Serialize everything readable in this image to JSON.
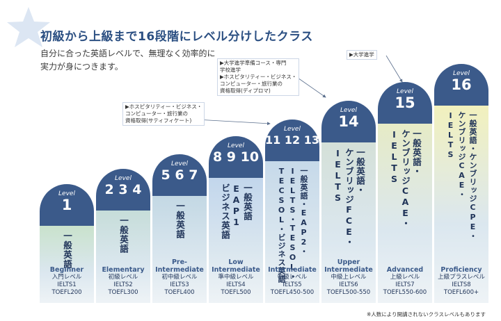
{
  "title": "初級から上級まで16段階にレベル分けしたクラス",
  "subtitle_lines": [
    "自分に合った英語レベルで、無理なく効率的に",
    "実力が身につきます。"
  ],
  "level_word": "Level",
  "notes": {
    "n1": [
      "▶ホスピタリティー・ビジネス・",
      "コンピューター・旅行業の",
      "資格取得(サティフィケート)"
    ],
    "n2": [
      "▶大学進学準備コース・専門",
      "学校進学",
      "▶ホスピタリティー・ビジネス・",
      "コンピューター・旅行業の",
      "資格取得(ディプロマ)"
    ],
    "n3": [
      "▶大学進学"
    ]
  },
  "levels": [
    {
      "num": "1",
      "course": [
        "一般英語"
      ],
      "en": "Beginner",
      "jp": "入門レベル",
      "ielts": "IELTS1",
      "toefl": "TOEFL200"
    },
    {
      "num": "2 3 4",
      "course": [
        "一般英語"
      ],
      "en": "Elementary",
      "jp": "初級レベル",
      "ielts": "IELTS2",
      "toefl": "TOEFL300"
    },
    {
      "num": "5 6 7",
      "course": [
        "一般英語"
      ],
      "en": "Pre-Intermediate",
      "en_lines": [
        "Pre-",
        "Intermediate"
      ],
      "jp": "初中級レベル",
      "ielts": "IELTS3",
      "toefl": "TOEFL400"
    },
    {
      "num": "8 9 10",
      "course": [
        "一般英語",
        "EAP1",
        "ビジネス英語"
      ],
      "en": "Low Intermediate",
      "en_lines": [
        "Low",
        "Intermediate"
      ],
      "jp": "準中級レベル",
      "ielts": "IELTS4",
      "toefl": "TOEFL500"
    },
    {
      "num": "11 12 13",
      "course": [
        "一般英語・EAP2・",
        "IELTS・TESOL・",
        "TECSOL・ビジネス英語"
      ],
      "en": "Intermediate",
      "jp": "中級レベル",
      "ielts": "IELTS5",
      "toefl": "TOEFL450-500"
    },
    {
      "num": "14",
      "course": [
        "一般英語・",
        "ケンブリッジFCE・",
        "IELTS"
      ],
      "en": "Upper Intermediate",
      "en_lines": [
        "Upper",
        "Intermediate"
      ],
      "jp": "中級上レベル",
      "ielts": "IELTS6",
      "toefl": "TOEFL500-550"
    },
    {
      "num": "15",
      "course": [
        "一般英語・",
        "ケンブリッジCAE・",
        "IELTS"
      ],
      "en": "Advanced",
      "jp": "上級レベル",
      "ielts": "IELTS7",
      "toefl": "TOEFL550-600"
    },
    {
      "num": "16",
      "course": [
        "一般英語・ケンブリッジCPE・",
        "ケンブリッジCAE・",
        "IELTS"
      ],
      "en": "Proficiency",
      "jp": "上級プラスレベル",
      "ielts": "IELTS8",
      "toefl": "TOEFL600+"
    }
  ],
  "footnote": "※人数により開講されないクラスレベルもあります",
  "colors": {
    "cap": "#3b5a8a",
    "green": "#c9e2cc",
    "blue": "#c2d6ec",
    "yellow": "#f2f1bd"
  }
}
